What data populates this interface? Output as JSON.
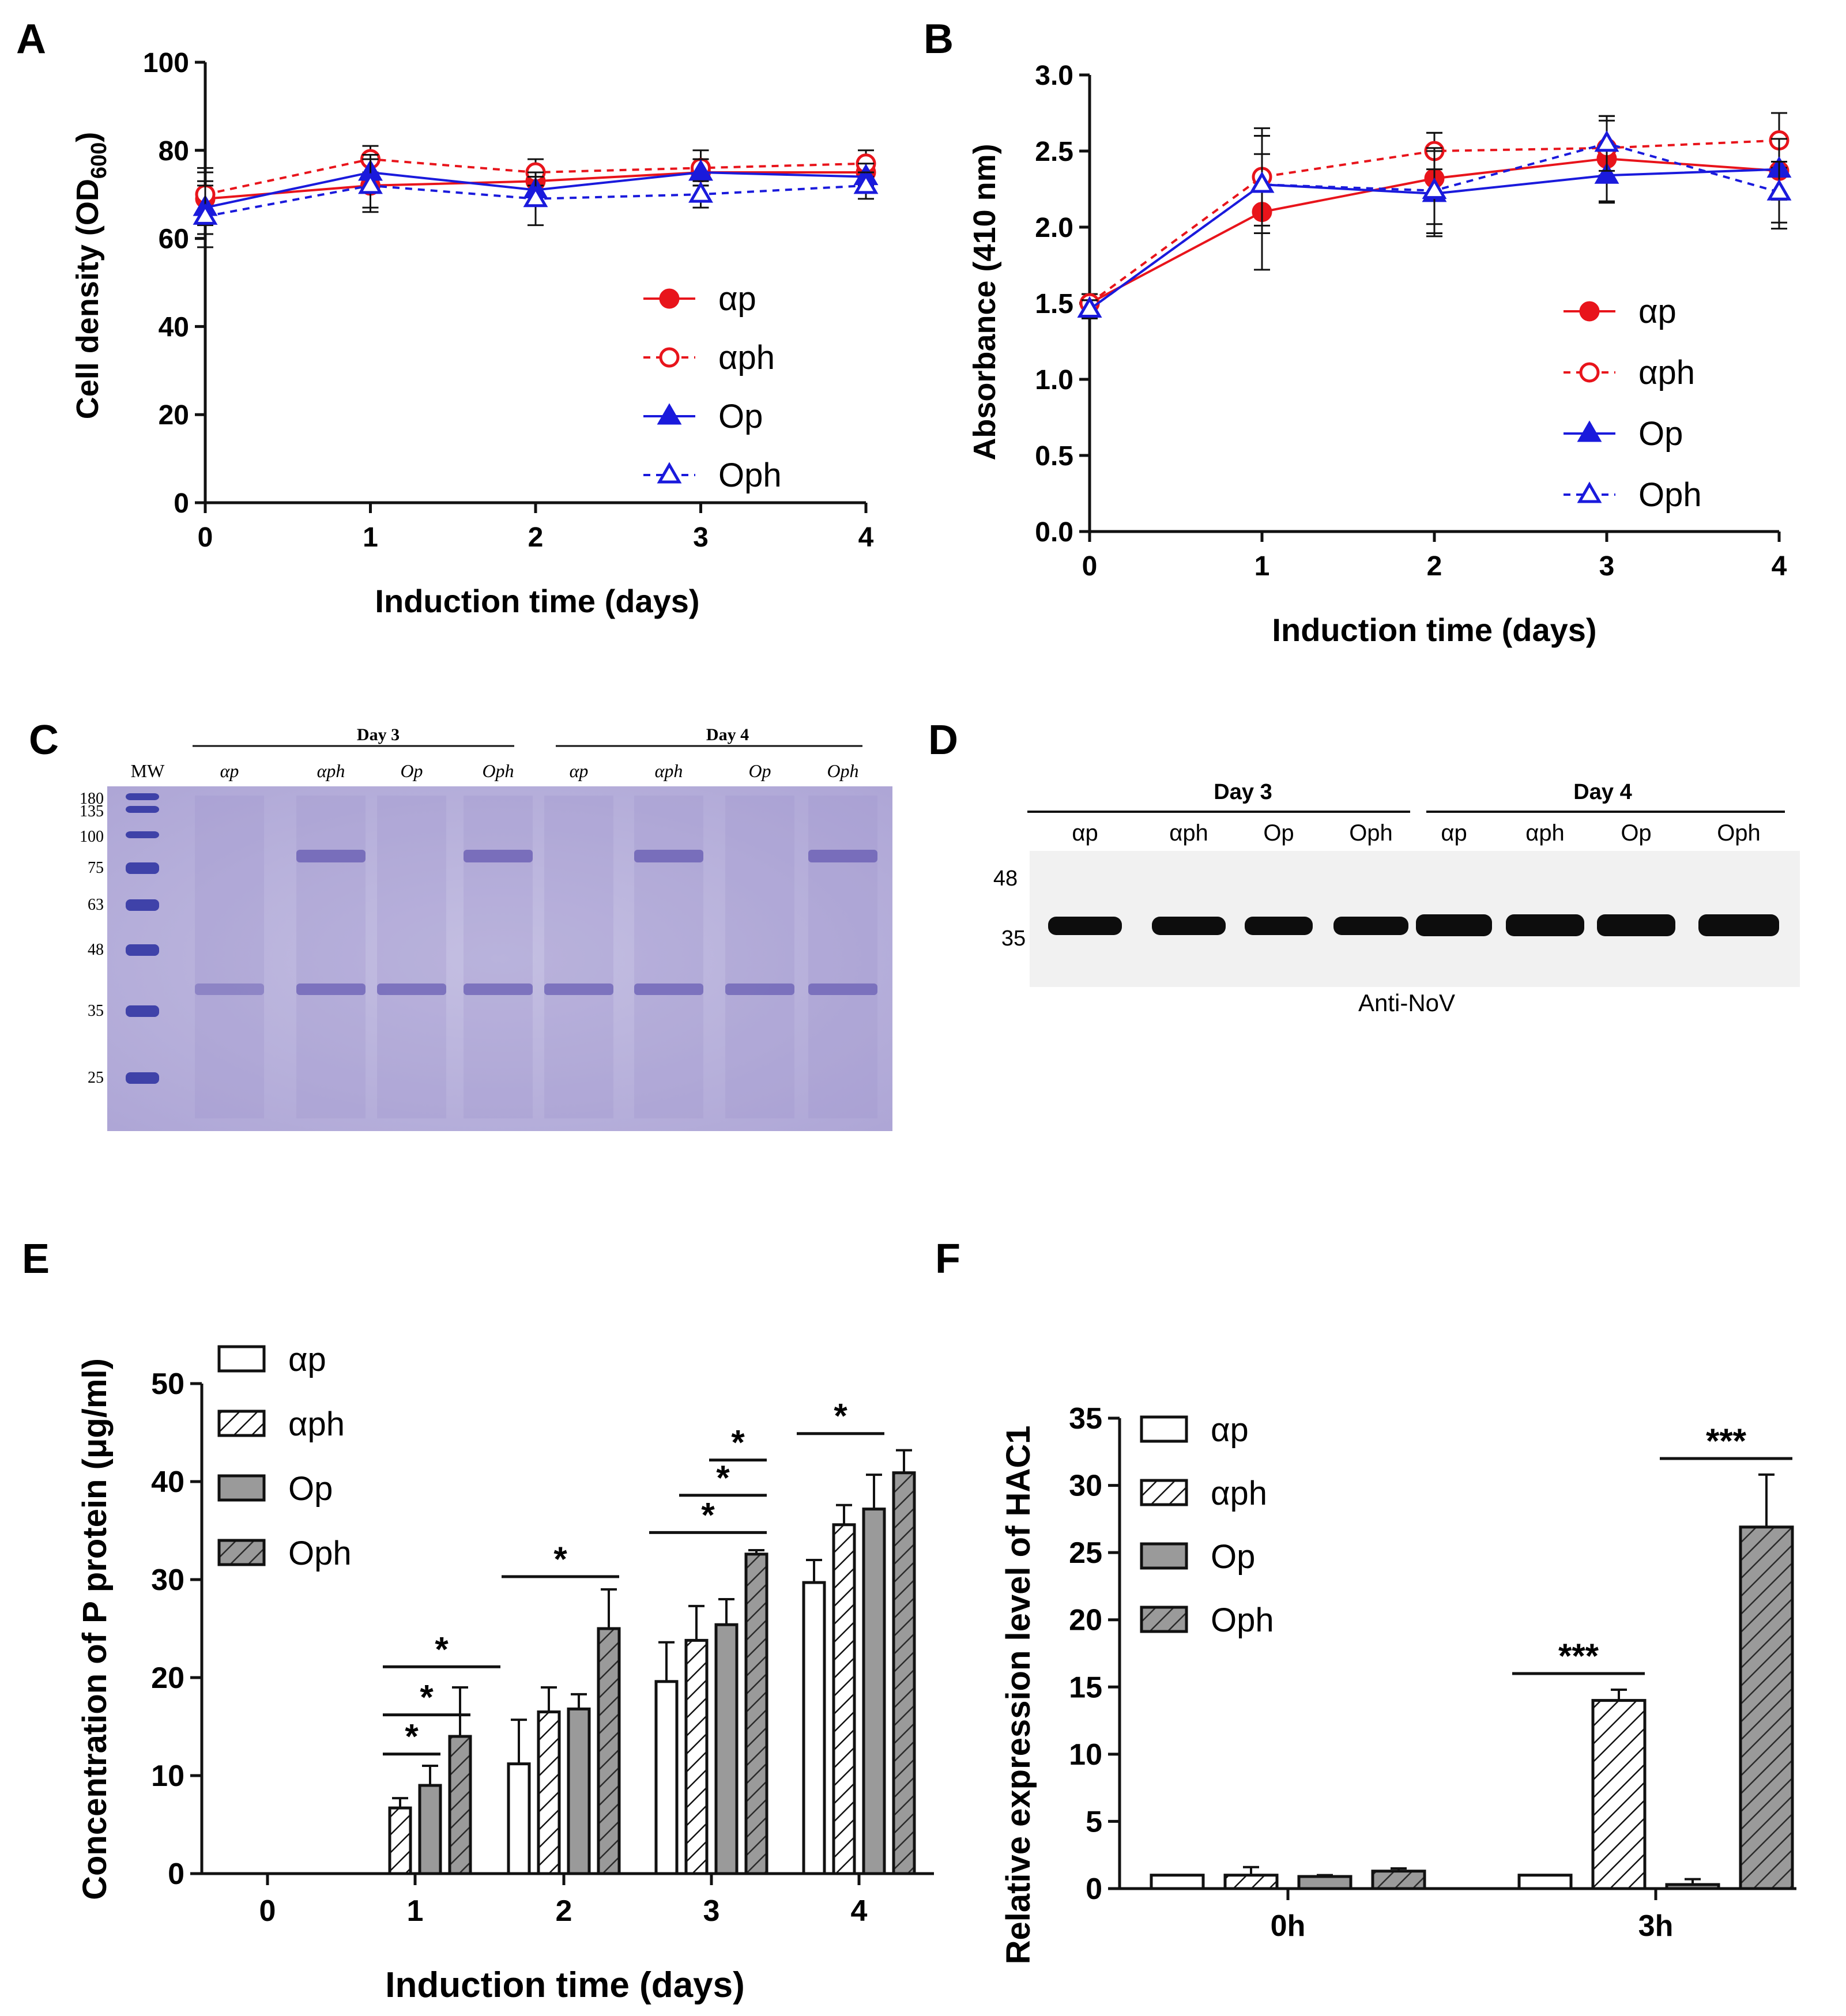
{
  "panel_labels": [
    "A",
    "B",
    "C",
    "D",
    "E",
    "F"
  ],
  "colors": {
    "red": "#e8141b",
    "blue": "#1a1adc",
    "black": "#111111",
    "gel_bg": "#b9b3dc",
    "gel_band": "#6a5fb4",
    "gray": "#9a9a9a"
  },
  "chart_data": [
    {
      "id": "A",
      "type": "line",
      "xlabel": "Induction time (days)",
      "ylabel_main": "Cell density (OD",
      "ylabel_sub": "600",
      "ylabel_end": ")",
      "x": [
        0,
        1,
        2,
        3,
        4
      ],
      "xlim": [
        0,
        4
      ],
      "ylim": [
        0,
        100
      ],
      "x_ticks": [
        "0",
        "1",
        "2",
        "3",
        "4"
      ],
      "y_ticks": [
        "0",
        "20",
        "40",
        "60",
        "80",
        "100"
      ],
      "series": [
        {
          "name": "αp",
          "values": [
            69,
            72,
            73,
            75,
            75
          ],
          "errors": [
            6,
            5,
            3,
            3,
            3
          ],
          "color": "red",
          "marker": "circle",
          "fill": true,
          "dash": false
        },
        {
          "name": "αph",
          "values": [
            70,
            78,
            75,
            76,
            77
          ],
          "errors": [
            6,
            3,
            3,
            4,
            3
          ],
          "color": "red",
          "marker": "circle",
          "fill": false,
          "dash": true
        },
        {
          "name": "Op",
          "values": [
            67,
            75,
            71,
            75,
            74
          ],
          "errors": [
            6,
            4,
            3,
            3,
            3
          ],
          "color": "blue",
          "marker": "triangle",
          "fill": true,
          "dash": false
        },
        {
          "name": "Oph",
          "values": [
            65,
            72,
            69,
            70,
            72
          ],
          "errors": [
            7,
            6,
            6,
            3,
            3
          ],
          "color": "blue",
          "marker": "triangle",
          "fill": false,
          "dash": true
        }
      ]
    },
    {
      "id": "B",
      "type": "line",
      "xlabel": "Induction time (days)",
      "ylabel": "Absorbance (410 nm)",
      "x": [
        0,
        1,
        2,
        3,
        4
      ],
      "xlim": [
        0,
        4
      ],
      "ylim": [
        0,
        3
      ],
      "x_ticks": [
        "0",
        "1",
        "2",
        "3",
        "4"
      ],
      "y_ticks": [
        "0.0",
        "0.5",
        "1.0",
        "1.5",
        "2.0",
        "2.5",
        "3.0"
      ],
      "series": [
        {
          "name": "αp",
          "values": [
            1.5,
            2.1,
            2.32,
            2.45,
            2.37
          ],
          "errors": [
            0.06,
            0.38,
            0.3,
            0.28,
            0.38
          ],
          "color": "red",
          "marker": "circle",
          "fill": true,
          "dash": false
        },
        {
          "name": "αph",
          "values": [
            1.5,
            2.33,
            2.5,
            2.52,
            2.57
          ],
          "errors": [
            0.06,
            0.32,
            0.12,
            0.18,
            0.18
          ],
          "color": "red",
          "marker": "circle",
          "fill": false,
          "dash": true
        },
        {
          "name": "Op",
          "values": [
            1.46,
            2.28,
            2.22,
            2.34,
            2.38
          ],
          "errors": [
            0.06,
            0.32,
            0.28,
            0.18,
            0.2
          ],
          "color": "blue",
          "marker": "triangle",
          "fill": true,
          "dash": false
        },
        {
          "name": "Oph",
          "values": [
            1.46,
            2.28,
            2.24,
            2.55,
            2.23
          ],
          "errors": [
            0.06,
            0.32,
            0.28,
            0.18,
            0.2
          ],
          "color": "blue",
          "marker": "triangle",
          "fill": false,
          "dash": true
        }
      ]
    },
    {
      "id": "E",
      "type": "bar",
      "xlabel": "Induction time (days)",
      "ylabel": "Concentration of P protein (μg/ml)",
      "categories": [
        "0",
        "1",
        "2",
        "3",
        "4"
      ],
      "ylim": [
        0,
        50
      ],
      "y_ticks": [
        "0",
        "10",
        "20",
        "30",
        "40",
        "50"
      ],
      "series": [
        {
          "name": "αp",
          "pattern": "white",
          "values": [
            0,
            0,
            11.2,
            19.6,
            29.7
          ],
          "errors": [
            0,
            0,
            4.5,
            4.0,
            2.3
          ]
        },
        {
          "name": "αph",
          "pattern": "hatch-white",
          "values": [
            0,
            6.7,
            16.5,
            23.8,
            35.6
          ],
          "errors": [
            0,
            1.0,
            2.5,
            3.5,
            2.0
          ]
        },
        {
          "name": "Op",
          "pattern": "gray",
          "values": [
            0,
            9.0,
            16.8,
            25.4,
            37.2
          ],
          "errors": [
            0,
            2.0,
            1.5,
            2.6,
            3.5
          ]
        },
        {
          "name": "Oph",
          "pattern": "hatch-gray",
          "values": [
            0,
            14.0,
            25.0,
            32.6,
            40.9
          ],
          "errors": [
            0,
            5.0,
            4.0,
            0.4,
            2.3
          ]
        }
      ],
      "significance": [
        {
          "cat": 1,
          "from": 1,
          "to": 2,
          "y": 12.2,
          "label": "*"
        },
        {
          "cat": 1,
          "from": 1,
          "to": 3,
          "y": 16.2,
          "label": "*"
        },
        {
          "cat": 1,
          "from": 1,
          "to": 4,
          "y": 21.1,
          "label": "*"
        },
        {
          "cat": 2,
          "from": 0,
          "to": 3,
          "y": 30.3,
          "label": "*"
        },
        {
          "cat": 3,
          "from": 0,
          "to": 3,
          "y": 34.8,
          "label": "*"
        },
        {
          "cat": 3,
          "from": 1,
          "to": 3,
          "y": 38.6,
          "label": "*"
        },
        {
          "cat": 3,
          "from": 2,
          "to": 3,
          "y": 42.2,
          "label": "*"
        },
        {
          "cat": 4,
          "from": 0,
          "to": 2,
          "y": 44.9,
          "label": "*"
        }
      ]
    },
    {
      "id": "F",
      "type": "bar",
      "xlabel": "",
      "ylabel": "Relative expression level of HAC1",
      "categories": [
        "0h",
        "3h"
      ],
      "ylim": [
        0,
        35
      ],
      "y_ticks": [
        "0",
        "5",
        "10",
        "15",
        "20",
        "25",
        "30",
        "35"
      ],
      "series": [
        {
          "name": "αp",
          "pattern": "white",
          "values": [
            1.0,
            1.0
          ],
          "errors": [
            0,
            0
          ]
        },
        {
          "name": "αph",
          "pattern": "hatch-white",
          "values": [
            1.0,
            14.0
          ],
          "errors": [
            0.6,
            0.8
          ]
        },
        {
          "name": "Op",
          "pattern": "gray",
          "values": [
            0.9,
            0.3
          ],
          "errors": [
            0.1,
            0.4
          ]
        },
        {
          "name": "Oph",
          "pattern": "hatch-gray",
          "values": [
            1.3,
            26.9
          ],
          "errors": [
            0.2,
            3.9
          ]
        }
      ],
      "significance": [
        {
          "cat": 1,
          "from": 0,
          "to": 1,
          "y": 16.0,
          "label": "***"
        },
        {
          "cat": 1,
          "from": 2,
          "to": 3,
          "y": 32.0,
          "label": "***"
        }
      ]
    }
  ],
  "gel_c": {
    "header_groups": [
      "Day 3",
      "Day 4"
    ],
    "mw_label": "MW",
    "lanes": [
      "αp",
      "αph",
      "Op",
      "Oph",
      "αp",
      "αph",
      "Op",
      "Oph"
    ],
    "markers": [
      "180",
      "135",
      "100",
      "75",
      "63",
      "48",
      "35",
      "25"
    ]
  },
  "blot_d": {
    "header_groups": [
      "Day 3",
      "Day 4"
    ],
    "lanes": [
      "αp",
      "αph",
      "Op",
      "Oph",
      "αp",
      "αph",
      "Op",
      "Oph"
    ],
    "markers": [
      "48",
      "35"
    ],
    "caption": "Anti-NoV"
  }
}
